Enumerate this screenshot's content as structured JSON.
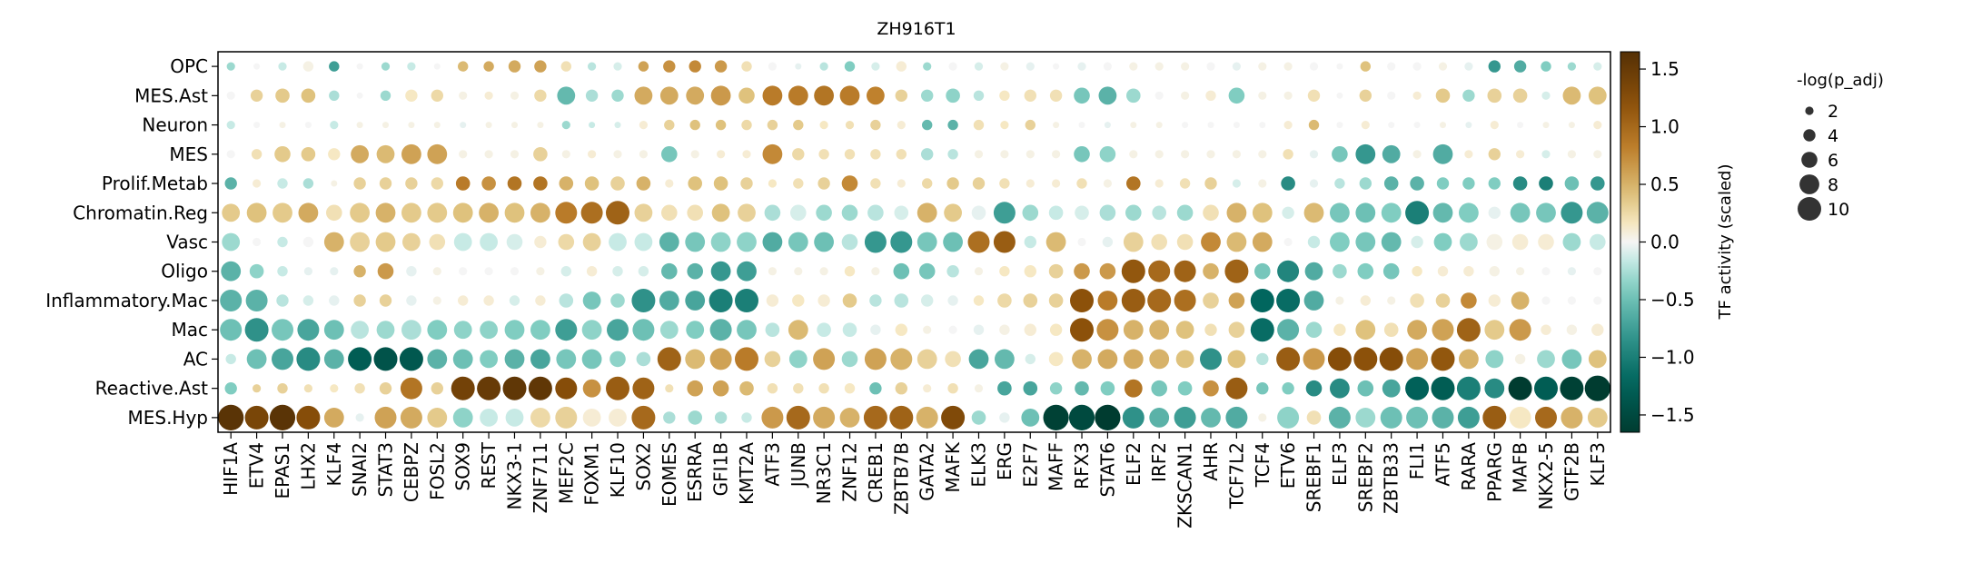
{
  "chart_data": {
    "type": "dotplot",
    "title": "ZH916T1",
    "ylabel": "",
    "xlabel": "",
    "rows": [
      "OPC",
      "MES.Ast",
      "Neuron",
      "MES",
      "Prolif.Metab",
      "Chromatin.Reg",
      "Vasc",
      "Oligo",
      "Inflammatory.Mac",
      "Mac",
      "AC",
      "Reactive.Ast",
      "MES.Hyp"
    ],
    "columns": [
      "HIF1A",
      "ETV4",
      "EPAS1",
      "LHX2",
      "KLF4",
      "SNAI2",
      "STAT3",
      "CEBPZ",
      "FOSL2",
      "SOX9",
      "REST",
      "NKX3-1",
      "ZNF711",
      "MEF2C",
      "FOXM1",
      "KLF10",
      "SOX2",
      "EOMES",
      "ESRRA",
      "GFI1B",
      "KMT2A",
      "ATF3",
      "JUNB",
      "NR3C1",
      "ZNF12",
      "CREB1",
      "ZBTB7B",
      "GATA2",
      "MAFK",
      "ELK3",
      "ERG",
      "E2F7",
      "MAFF",
      "RFX3",
      "STAT6",
      "ELF2",
      "IRF2",
      "ZKSCAN1",
      "AHR",
      "TCF7L2",
      "TCF4",
      "ETV6",
      "SREBF1",
      "ELF3",
      "SREBF2",
      "ZBTB33",
      "FLI1",
      "ATF5",
      "RARA",
      "PPARG",
      "MAFB",
      "NKX2-5",
      "GTF2B",
      "KLF3"
    ],
    "colorbar": {
      "label": "TF activity (scaled)",
      "range": [
        -1.65,
        1.65
      ],
      "ticks": [
        "1.5",
        "1.0",
        "0.5",
        "0.0",
        "−0.5",
        "−1.0",
        "−1.5"
      ],
      "tick_values": [
        1.5,
        1.0,
        0.5,
        0.0,
        -0.5,
        -1.0,
        -1.5
      ],
      "colormap": "BrBG_r"
    },
    "size_legend": {
      "title": "-log(p_adj)",
      "labels": [
        "2",
        "4",
        "6",
        "8",
        "10"
      ],
      "values": [
        2,
        4,
        6,
        8,
        10
      ]
    },
    "values": [
      [
        -0.3,
        0,
        -0.15,
        0.05,
        -0.75,
        0,
        -0.3,
        -0.15,
        0,
        0.45,
        0.55,
        0.55,
        0.6,
        0.2,
        -0.2,
        -0.1,
        0.6,
        0.7,
        0.75,
        0.65,
        0.2,
        0,
        -0.05,
        -0.2,
        -0.4,
        -0.1,
        0.1,
        -0.3,
        0,
        -0.1,
        0.05,
        -0.05,
        0,
        -0.05,
        0,
        0.05,
        0.05,
        0.05,
        0,
        -0.05,
        0.05,
        0.05,
        0,
        0,
        0.4,
        0,
        0,
        0.05,
        -0.05,
        -0.8,
        -0.65,
        -0.4,
        -0.3,
        -0.1
      ],
      [
        0,
        0.3,
        0.35,
        0.4,
        -0.25,
        0,
        -0.3,
        0.15,
        0.25,
        0.05,
        0.1,
        0.05,
        0.25,
        -0.55,
        -0.25,
        -0.3,
        0.55,
        0.55,
        0.55,
        0.65,
        0.4,
        0.85,
        0.85,
        0.9,
        0.85,
        0.8,
        0.3,
        -0.3,
        -0.35,
        -0.2,
        0.15,
        0.2,
        0.2,
        -0.45,
        -0.6,
        -0.3,
        0,
        0.05,
        0.1,
        -0.4,
        0.05,
        0.05,
        0.2,
        0,
        0.3,
        0,
        0.1,
        0.35,
        -0.3,
        0.3,
        0.3,
        -0.1,
        0.45,
        0.4
      ],
      [
        -0.15,
        0,
        0.05,
        0,
        -0.15,
        0.05,
        0.05,
        0.05,
        0.05,
        -0.05,
        0.05,
        0.05,
        0.05,
        -0.3,
        -0.15,
        -0.1,
        0.1,
        0.3,
        0.4,
        0.4,
        0.25,
        0.3,
        0.35,
        0.15,
        0.2,
        0.3,
        0.1,
        -0.55,
        -0.6,
        0.2,
        0.15,
        0.3,
        0.05,
        0,
        -0.05,
        0.05,
        0.05,
        0,
        0,
        0,
        0,
        0.1,
        0.45,
        0,
        0.1,
        0,
        0,
        0.05,
        -0.05,
        0.1,
        0,
        0.05,
        0.05,
        0.1
      ],
      [
        0,
        0.2,
        0.35,
        0.35,
        0.15,
        0.55,
        0.45,
        0.6,
        0.6,
        0.05,
        0.05,
        0.05,
        0.3,
        0.05,
        0.1,
        0.05,
        0.05,
        -0.45,
        0.05,
        0.1,
        0.1,
        0.75,
        0.25,
        0.2,
        0.2,
        0.2,
        0.2,
        -0.25,
        -0.2,
        0.05,
        0.05,
        0.05,
        0.05,
        -0.45,
        -0.35,
        0.05,
        0.05,
        0.05,
        0.05,
        0.05,
        0.05,
        0.2,
        -0.05,
        -0.45,
        -0.8,
        -0.65,
        0.05,
        -0.65,
        0.1,
        0.3,
        0.1,
        -0.1,
        0.05,
        0.05
      ],
      [
        -0.6,
        0.1,
        -0.15,
        -0.25,
        0.05,
        0.3,
        0.3,
        0.3,
        0.25,
        0.85,
        0.7,
        0.9,
        0.9,
        0.5,
        0.4,
        0.3,
        0.5,
        0.1,
        0.4,
        0.4,
        0.3,
        0.15,
        0.2,
        0.3,
        0.75,
        0.2,
        0.1,
        0.25,
        0.35,
        0.3,
        0.2,
        0.1,
        0.1,
        0.2,
        0.05,
        0.9,
        0.1,
        0.2,
        0.3,
        -0.1,
        0.05,
        -0.9,
        -0.05,
        -0.2,
        -0.3,
        -0.6,
        -0.6,
        -0.4,
        -0.4,
        -0.4,
        -0.9,
        -1.0,
        -0.5,
        -0.8
      ],
      [
        0.35,
        0.4,
        0.35,
        0.55,
        0.2,
        0.35,
        0.5,
        0.35,
        0.35,
        0.4,
        0.5,
        0.4,
        0.5,
        0.85,
        0.95,
        1.05,
        0.3,
        0.2,
        0.2,
        0.4,
        0.3,
        -0.25,
        -0.1,
        -0.3,
        -0.3,
        -0.2,
        -0.1,
        0.5,
        0.35,
        -0.05,
        -0.75,
        -0.3,
        -0.15,
        -0.1,
        -0.25,
        -0.3,
        -0.2,
        -0.3,
        0.2,
        0.5,
        0.4,
        -0.1,
        0.45,
        -0.45,
        -0.5,
        -0.4,
        -1.0,
        -0.55,
        -0.4,
        -0.05,
        -0.45,
        -0.45,
        -0.8,
        -0.6
      ],
      [
        -0.3,
        0,
        -0.15,
        0,
        0.5,
        0.3,
        0.35,
        0.3,
        0.2,
        -0.15,
        -0.15,
        -0.1,
        0.1,
        0.25,
        0.3,
        -0.15,
        -0.15,
        -0.6,
        -0.45,
        -0.35,
        -0.35,
        -0.65,
        -0.45,
        -0.5,
        -0.2,
        -0.8,
        -0.8,
        -0.45,
        -0.5,
        0.95,
        1.1,
        -0.15,
        0.45,
        0,
        -0.05,
        0.3,
        0.2,
        0.2,
        0.75,
        0.45,
        0.55,
        0,
        -0.15,
        -0.4,
        -0.45,
        -0.55,
        -0.1,
        -0.4,
        -0.3,
        0.05,
        0.1,
        0.1,
        -0.3,
        -0.15
      ],
      [
        -0.6,
        -0.35,
        -0.15,
        -0.05,
        -0.05,
        0.5,
        0.65,
        -0.05,
        0.05,
        0,
        0,
        0,
        0.05,
        -0.1,
        0.1,
        -0.1,
        -0.1,
        -0.55,
        -0.6,
        -0.8,
        -0.75,
        0.05,
        0.05,
        0.05,
        0.15,
        0.05,
        -0.5,
        -0.45,
        -0.2,
        0.05,
        0.15,
        0.15,
        0.3,
        0.65,
        0.65,
        1.15,
        1.0,
        1.05,
        0.5,
        1.05,
        -0.45,
        -0.95,
        -0.65,
        -0.3,
        -0.4,
        -0.45,
        0.15,
        0.1,
        0.1,
        0.05,
        0.05,
        0,
        -0.05,
        0
      ],
      [
        -0.6,
        -0.6,
        -0.2,
        -0.1,
        -0.05,
        0.3,
        0.3,
        -0.05,
        0.05,
        0.1,
        0.1,
        -0.1,
        0.1,
        -0.2,
        -0.45,
        -0.3,
        -0.85,
        -0.65,
        -0.7,
        -1.0,
        -1.0,
        0.1,
        0.15,
        0.1,
        0.35,
        -0.2,
        -0.2,
        -0.1,
        -0.05,
        0.15,
        0.25,
        0.3,
        0.3,
        1.2,
        0.85,
        1.1,
        1.0,
        0.95,
        0.3,
        0.6,
        -1.2,
        -1.15,
        -0.65,
        0.05,
        0.1,
        0.05,
        0.2,
        0.3,
        0.75,
        0.1,
        0.5,
        0,
        0,
        0
      ],
      [
        -0.5,
        -0.85,
        -0.45,
        -0.7,
        -0.5,
        -0.2,
        -0.3,
        -0.25,
        -0.4,
        -0.35,
        -0.35,
        -0.4,
        -0.4,
        -0.75,
        -0.35,
        -0.7,
        -0.5,
        -0.3,
        -0.4,
        -0.6,
        -0.45,
        -0.2,
        0.45,
        -0.15,
        -0.15,
        -0.05,
        0.15,
        0.05,
        0,
        -0.05,
        0.05,
        0.1,
        0.15,
        1.2,
        0.7,
        0.5,
        0.5,
        0.4,
        0.2,
        0.3,
        -1.15,
        -0.6,
        -0.3,
        0.15,
        0.4,
        0.2,
        0.55,
        0.6,
        1.05,
        0.35,
        0.65,
        0.1,
        0.05,
        0.1
      ],
      [
        -0.15,
        -0.5,
        -0.7,
        -0.9,
        -0.6,
        -1.3,
        -1.4,
        -1.35,
        -0.6,
        -0.5,
        -0.4,
        -0.6,
        -0.7,
        -0.45,
        -0.45,
        -0.35,
        -0.25,
        1.05,
        0.45,
        0.6,
        0.85,
        0.3,
        -0.35,
        0.6,
        -0.3,
        0.6,
        0.5,
        0.3,
        0.2,
        -0.7,
        -0.55,
        -0.1,
        0.15,
        0.5,
        0.55,
        0.55,
        0.5,
        0.4,
        -0.85,
        0.4,
        -0.2,
        1.1,
        0.65,
        1.25,
        1.2,
        1.25,
        0.6,
        1.15,
        0.5,
        -0.35,
        0.05,
        -0.3,
        -0.45,
        0.4
      ],
      [
        -0.4,
        0.3,
        0.3,
        0.2,
        0.15,
        0.2,
        0.3,
        0.9,
        0.3,
        1.4,
        1.5,
        1.55,
        1.55,
        1.25,
        0.7,
        1.1,
        1.05,
        0.2,
        0.6,
        0.6,
        0.45,
        0.2,
        0.2,
        0.2,
        0.15,
        -0.5,
        0.3,
        0.1,
        0.2,
        0.05,
        -0.7,
        -0.7,
        -0.35,
        -0.55,
        -0.4,
        0.9,
        -0.45,
        -0.4,
        0.7,
        1.1,
        -0.45,
        -0.4,
        -0.9,
        -0.9,
        -0.5,
        -0.7,
        -1.25,
        -1.3,
        -1.0,
        -0.9,
        -1.65,
        -1.3,
        -1.6,
        -1.7
      ],
      [
        1.6,
        1.35,
        1.6,
        1.25,
        0.55,
        -0.05,
        0.6,
        0.55,
        0.35,
        -0.35,
        -0.15,
        -0.15,
        0.25,
        0.3,
        0.1,
        0.1,
        1.0,
        -0.25,
        -0.3,
        -0.25,
        -0.15,
        0.65,
        1.0,
        0.55,
        0.5,
        1.0,
        1.05,
        0.5,
        1.3,
        -0.3,
        -0.05,
        -0.5,
        -1.6,
        -1.5,
        -1.65,
        -0.85,
        -0.6,
        -0.75,
        -0.55,
        -0.65,
        0.05,
        -0.35,
        0.2,
        -0.6,
        -0.3,
        -0.5,
        -0.5,
        -0.6,
        -0.75,
        1.1,
        0.15,
        1.0,
        0.5,
        0.35
      ]
    ],
    "sizes": [
      [
        2,
        1,
        2,
        3,
        3,
        1,
        2,
        2,
        1,
        3,
        3,
        4,
        4,
        3,
        2,
        2,
        3,
        4,
        4,
        4,
        3,
        2,
        1,
        2,
        3,
        2,
        3,
        2,
        2,
        2,
        2,
        2,
        1,
        2,
        2,
        2,
        2,
        2,
        2,
        2,
        2,
        2,
        2,
        1,
        3,
        2,
        2,
        2,
        2,
        4,
        4,
        3,
        2,
        2
      ],
      [
        2,
        4,
        5,
        5,
        3,
        1,
        3,
        4,
        4,
        2,
        2,
        2,
        4,
        7,
        4,
        4,
        7,
        7,
        7,
        8,
        6,
        8,
        8,
        8,
        8,
        7,
        4,
        4,
        5,
        3,
        3,
        4,
        4,
        6,
        7,
        5,
        2,
        2,
        3,
        6,
        2,
        2,
        4,
        1,
        4,
        2,
        2,
        5,
        4,
        5,
        5,
        2,
        7,
        7
      ],
      [
        2,
        1,
        1,
        1,
        2,
        1,
        1,
        1,
        1,
        1,
        1,
        1,
        1,
        2,
        1,
        1,
        2,
        3,
        3,
        3,
        3,
        3,
        3,
        2,
        2,
        3,
        2,
        3,
        3,
        3,
        2,
        3,
        1,
        1,
        1,
        1,
        1,
        1,
        1,
        1,
        1,
        2,
        3,
        1,
        2,
        1,
        1,
        1,
        1,
        2,
        1,
        1,
        1,
        2
      ],
      [
        2,
        3,
        6,
        5,
        4,
        7,
        7,
        8,
        8,
        2,
        2,
        2,
        5,
        2,
        2,
        2,
        2,
        6,
        2,
        2,
        2,
        8,
        4,
        3,
        3,
        3,
        3,
        4,
        3,
        2,
        2,
        2,
        2,
        6,
        6,
        2,
        2,
        2,
        2,
        2,
        2,
        3,
        2,
        6,
        8,
        7,
        2,
        8,
        2,
        4,
        2,
        2,
        2,
        2
      ],
      [
        4,
        2,
        3,
        3,
        1,
        4,
        4,
        4,
        4,
        5,
        5,
        5,
        5,
        5,
        5,
        5,
        5,
        2,
        5,
        5,
        4,
        2,
        3,
        4,
        6,
        3,
        2,
        3,
        4,
        4,
        3,
        2,
        2,
        3,
        2,
        5,
        2,
        3,
        4,
        2,
        2,
        5,
        2,
        3,
        4,
        5,
        5,
        4,
        4,
        4,
        5,
        5,
        5,
        5
      ],
      [
        7,
        8,
        8,
        8,
        6,
        8,
        8,
        8,
        8,
        8,
        8,
        8,
        8,
        9,
        9,
        10,
        7,
        6,
        6,
        7,
        7,
        6,
        6,
        6,
        6,
        6,
        5,
        8,
        7,
        5,
        9,
        6,
        5,
        5,
        6,
        6,
        5,
        6,
        6,
        8,
        8,
        4,
        8,
        8,
        8,
        8,
        10,
        8,
        8,
        4,
        8,
        8,
        9,
        9
      ],
      [
        7,
        2,
        3,
        3,
        8,
        8,
        8,
        7,
        6,
        7,
        7,
        6,
        4,
        6,
        7,
        7,
        7,
        8,
        8,
        8,
        8,
        8,
        8,
        8,
        6,
        9,
        9,
        8,
        8,
        9,
        9,
        4,
        8,
        2,
        3,
        8,
        6,
        6,
        8,
        8,
        8,
        2,
        4,
        8,
        8,
        8,
        4,
        7,
        7,
        6,
        6,
        6,
        7,
        6
      ],
      [
        8,
        5,
        3,
        2,
        2,
        4,
        6,
        3,
        2,
        2,
        2,
        2,
        2,
        3,
        3,
        3,
        3,
        6,
        6,
        8,
        8,
        2,
        2,
        2,
        3,
        2,
        6,
        6,
        4,
        2,
        3,
        4,
        5,
        6,
        6,
        10,
        9,
        9,
        6,
        10,
        6,
        9,
        7,
        5,
        6,
        6,
        3,
        3,
        3,
        3,
        2,
        2,
        2,
        2
      ],
      [
        9,
        9,
        4,
        3,
        3,
        4,
        4,
        3,
        2,
        3,
        3,
        3,
        3,
        5,
        7,
        5,
        10,
        8,
        8,
        10,
        10,
        4,
        4,
        4,
        5,
        4,
        5,
        4,
        3,
        3,
        5,
        5,
        5,
        10,
        8,
        10,
        10,
        9,
        6,
        6,
        10,
        10,
        8,
        2,
        3,
        2,
        5,
        5,
        6,
        4,
        7,
        2,
        2,
        2
      ],
      [
        9,
        10,
        9,
        9,
        8,
        7,
        7,
        8,
        8,
        7,
        7,
        8,
        8,
        9,
        8,
        9,
        9,
        7,
        7,
        9,
        8,
        5,
        8,
        5,
        5,
        3,
        4,
        2,
        2,
        3,
        3,
        4,
        4,
        10,
        9,
        8,
        8,
        7,
        4,
        6,
        10,
        9,
        6,
        4,
        8,
        5,
        8,
        9,
        10,
        8,
        9,
        3,
        3,
        4
      ],
      [
        3,
        8,
        9,
        10,
        8,
        10,
        10,
        10,
        8,
        8,
        7,
        8,
        8,
        8,
        8,
        6,
        5,
        10,
        8,
        9,
        10,
        6,
        7,
        9,
        6,
        9,
        9,
        8,
        6,
        8,
        8,
        3,
        5,
        8,
        8,
        8,
        8,
        7,
        9,
        7,
        4,
        10,
        9,
        10,
        10,
        10,
        9,
        10,
        8,
        7,
        3,
        7,
        8,
        7
      ],
      [
        4,
        2,
        3,
        2,
        2,
        3,
        4,
        9,
        4,
        10,
        10,
        10,
        10,
        9,
        7,
        10,
        9,
        2,
        6,
        6,
        5,
        3,
        3,
        3,
        3,
        4,
        4,
        2,
        3,
        2,
        5,
        5,
        4,
        5,
        5,
        7,
        6,
        5,
        6,
        9,
        4,
        4,
        6,
        8,
        6,
        7,
        10,
        10,
        10,
        8,
        10,
        10,
        10,
        11
      ],
      [
        11,
        10,
        11,
        10,
        8,
        2,
        9,
        9,
        8,
        8,
        7,
        7,
        8,
        9,
        7,
        7,
        10,
        4,
        5,
        4,
        3,
        9,
        10,
        9,
        8,
        10,
        10,
        9,
        10,
        5,
        3,
        7,
        11,
        11,
        11,
        9,
        8,
        9,
        8,
        9,
        2,
        9,
        5,
        9,
        8,
        9,
        9,
        9,
        9,
        10,
        9,
        9,
        9,
        8
      ]
    ]
  }
}
